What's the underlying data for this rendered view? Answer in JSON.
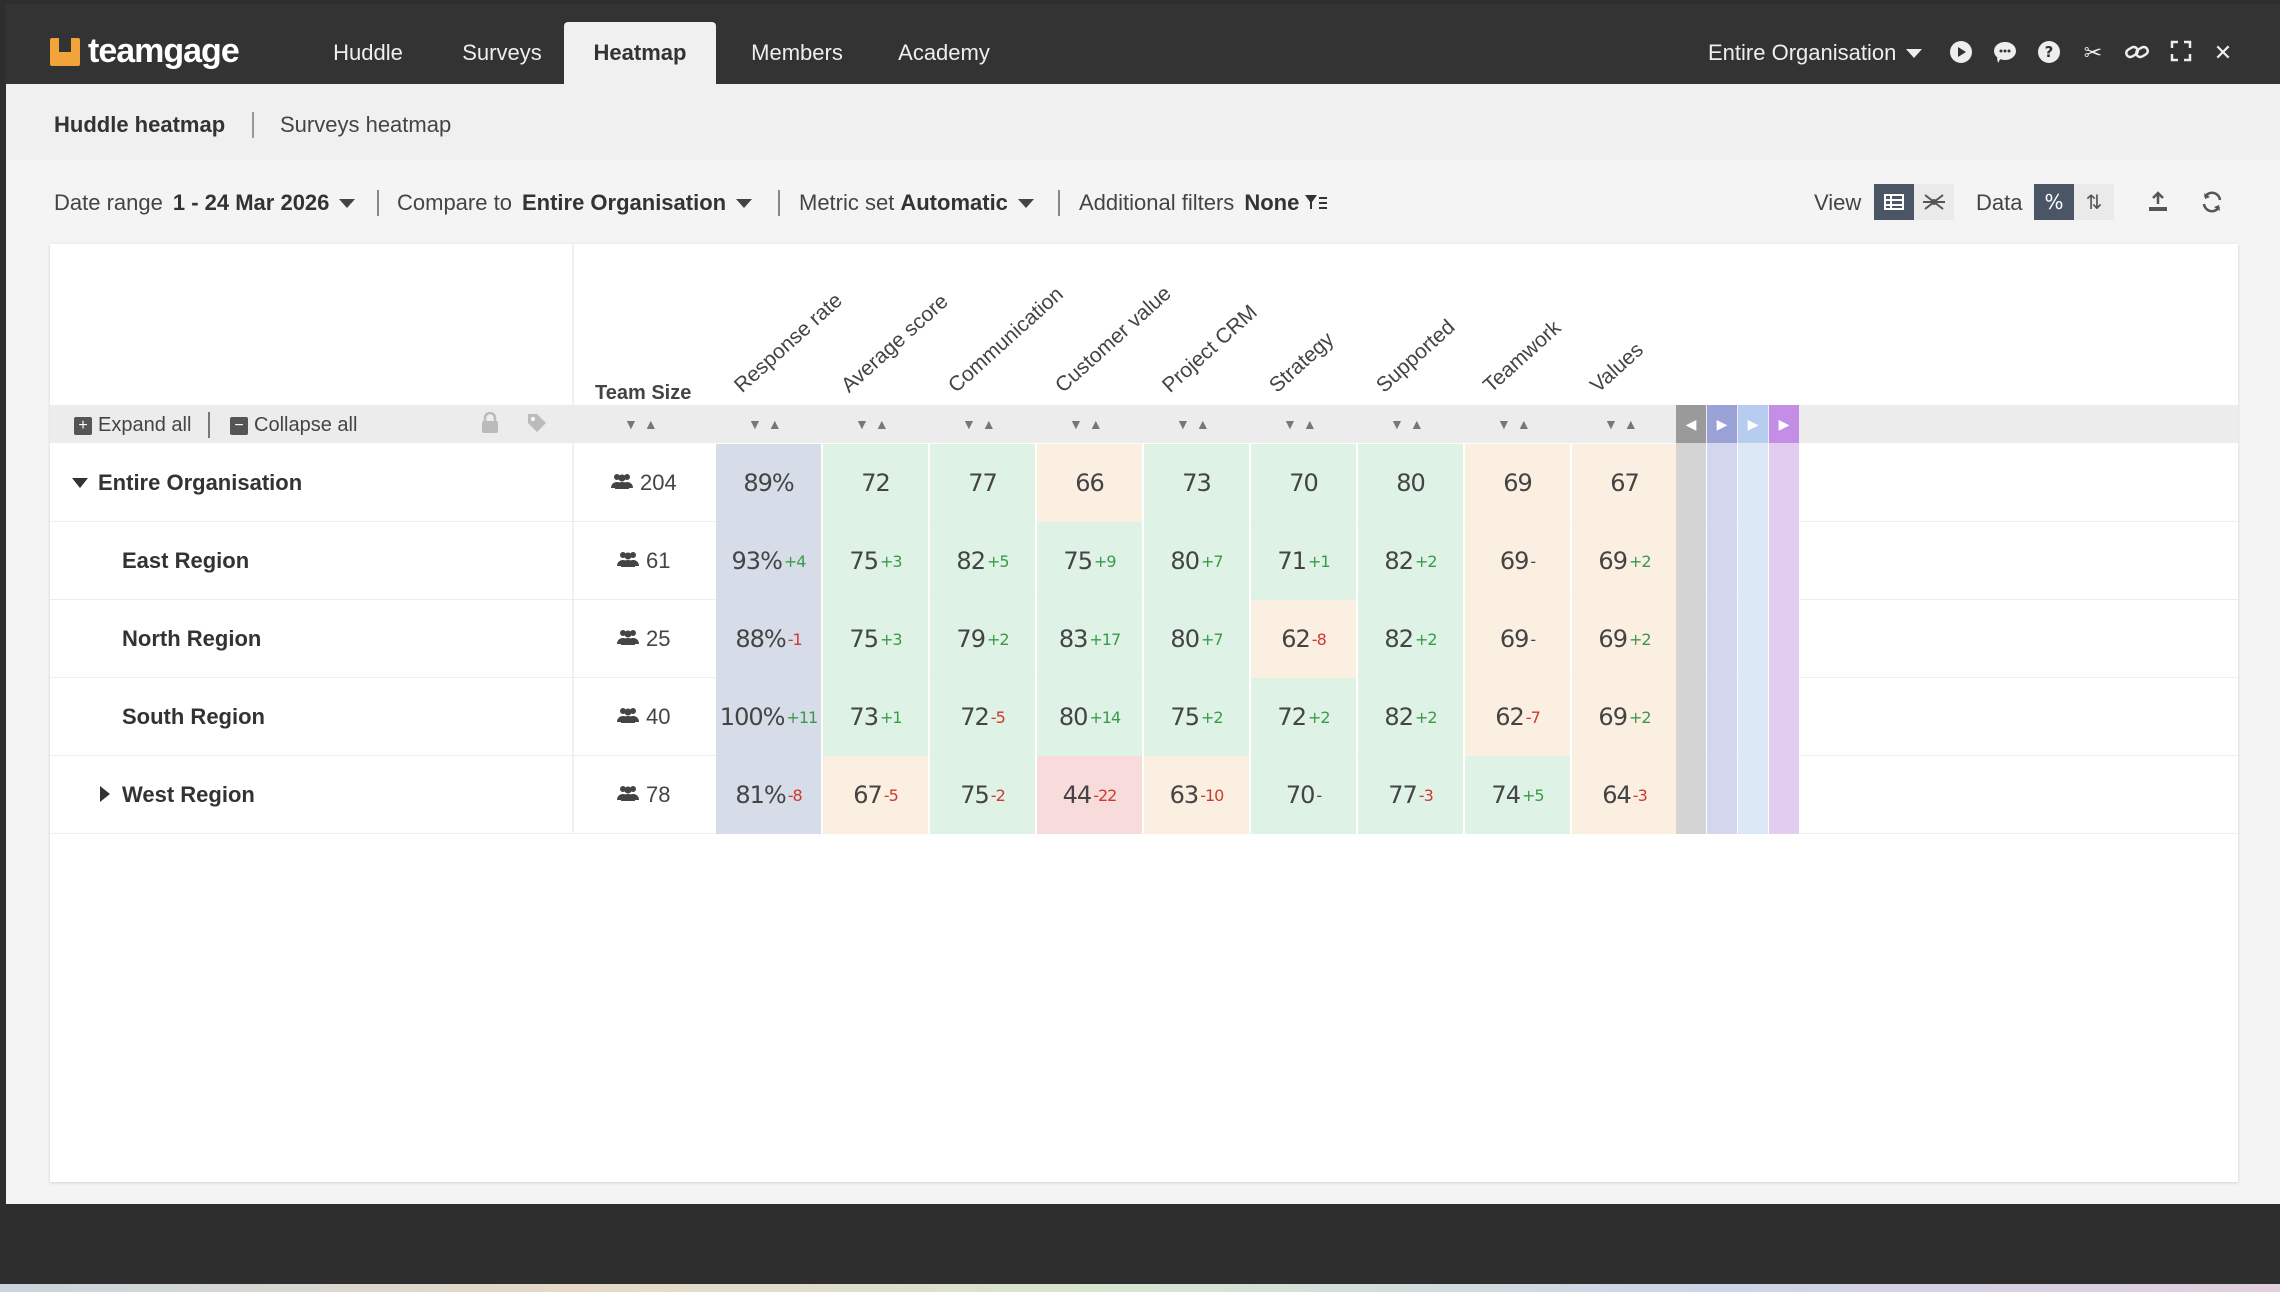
{
  "app": {
    "name": "teamgage"
  },
  "nav": {
    "tabs": [
      {
        "label": "Huddle",
        "active": false
      },
      {
        "label": "Surveys",
        "active": false
      },
      {
        "label": "Heatmap",
        "active": true
      },
      {
        "label": "Members",
        "active": false
      },
      {
        "label": "Academy",
        "active": false
      }
    ],
    "org_selector": "Entire Organisation",
    "icons": [
      "play-icon",
      "chat-icon",
      "help-icon",
      "scissors-icon",
      "link-icon",
      "fullscreen-icon",
      "close-icon"
    ]
  },
  "subnav": {
    "tabs": [
      {
        "label": "Huddle heatmap",
        "active": true
      },
      {
        "label": "Surveys heatmap",
        "active": false
      }
    ]
  },
  "filters": {
    "date_range_label": "Date range",
    "date_range_value": "1 - 24 Mar 2026",
    "compare_label": "Compare to",
    "compare_value": "Entire Organisation",
    "metric_label": "Metric set",
    "metric_value": "Automatic",
    "additional_label": "Additional filters",
    "additional_value": "None",
    "view_label": "View",
    "data_label": "Data"
  },
  "table": {
    "expand_all": "Expand all",
    "collapse_all": "Collapse all",
    "team_size_header": "Team Size",
    "metrics": [
      "Response rate",
      "Average score",
      "Communication",
      "Customer value",
      "Project CRM",
      "Strategy",
      "Supported",
      "Teamwork",
      "Values"
    ],
    "rows": [
      {
        "name": "Entire Organisation",
        "size": "204",
        "expanded": true,
        "level": 0,
        "cells": [
          {
            "v": "89%",
            "d": "",
            "bg": "#d6dde8"
          },
          {
            "v": "72",
            "d": "",
            "bg": "#dff2e6"
          },
          {
            "v": "77",
            "d": "",
            "bg": "#dff2e6"
          },
          {
            "v": "66",
            "d": "",
            "bg": "#fbefe2"
          },
          {
            "v": "73",
            "d": "",
            "bg": "#dff2e6"
          },
          {
            "v": "70",
            "d": "",
            "bg": "#dff2e6"
          },
          {
            "v": "80",
            "d": "",
            "bg": "#dff2e6"
          },
          {
            "v": "69",
            "d": "",
            "bg": "#fbefe2"
          },
          {
            "v": "67",
            "d": "",
            "bg": "#fbefe2"
          }
        ]
      },
      {
        "name": "East Region",
        "size": "61",
        "level": 1,
        "cells": [
          {
            "v": "93%",
            "d": "+4",
            "bg": "#d6dde8"
          },
          {
            "v": "75",
            "d": "+3",
            "bg": "#dff2e6"
          },
          {
            "v": "82",
            "d": "+5",
            "bg": "#dff2e6"
          },
          {
            "v": "75",
            "d": "+9",
            "bg": "#dff2e6"
          },
          {
            "v": "80",
            "d": "+7",
            "bg": "#dff2e6"
          },
          {
            "v": "71",
            "d": "+1",
            "bg": "#dff2e6"
          },
          {
            "v": "82",
            "d": "+2",
            "bg": "#dff2e6"
          },
          {
            "v": "69",
            "d": "-",
            "bg": "#fbefe2"
          },
          {
            "v": "69",
            "d": "+2",
            "bg": "#fbefe2"
          }
        ]
      },
      {
        "name": "North Region",
        "size": "25",
        "level": 1,
        "cells": [
          {
            "v": "88%",
            "d": "-1",
            "bg": "#d6dde8"
          },
          {
            "v": "75",
            "d": "+3",
            "bg": "#dff2e6"
          },
          {
            "v": "79",
            "d": "+2",
            "bg": "#dff2e6"
          },
          {
            "v": "83",
            "d": "+17",
            "bg": "#dff2e6"
          },
          {
            "v": "80",
            "d": "+7",
            "bg": "#dff2e6"
          },
          {
            "v": "62",
            "d": "-8",
            "bg": "#fbefe2"
          },
          {
            "v": "82",
            "d": "+2",
            "bg": "#dff2e6"
          },
          {
            "v": "69",
            "d": "-",
            "bg": "#fbefe2"
          },
          {
            "v": "69",
            "d": "+2",
            "bg": "#fbefe2"
          }
        ]
      },
      {
        "name": "South Region",
        "size": "40",
        "level": 1,
        "cells": [
          {
            "v": "100%",
            "d": "+11",
            "bg": "#d6dde8"
          },
          {
            "v": "73",
            "d": "+1",
            "bg": "#dff2e6"
          },
          {
            "v": "72",
            "d": "-5",
            "bg": "#dff2e6"
          },
          {
            "v": "80",
            "d": "+14",
            "bg": "#dff2e6"
          },
          {
            "v": "75",
            "d": "+2",
            "bg": "#dff2e6"
          },
          {
            "v": "72",
            "d": "+2",
            "bg": "#dff2e6"
          },
          {
            "v": "82",
            "d": "+2",
            "bg": "#dff2e6"
          },
          {
            "v": "62",
            "d": "-7",
            "bg": "#fbefe2"
          },
          {
            "v": "69",
            "d": "+2",
            "bg": "#fbefe2"
          }
        ]
      },
      {
        "name": "West Region",
        "size": "78",
        "collapsed": true,
        "level": 1,
        "cells": [
          {
            "v": "81%",
            "d": "-8",
            "bg": "#d6dde8"
          },
          {
            "v": "67",
            "d": "-5",
            "bg": "#fbefe2"
          },
          {
            "v": "75",
            "d": "-2",
            "bg": "#dff2e6"
          },
          {
            "v": "44",
            "d": "-22",
            "bg": "#f8dcdc"
          },
          {
            "v": "63",
            "d": "-10",
            "bg": "#fbefe2"
          },
          {
            "v": "70",
            "d": "-",
            "bg": "#dff2e6"
          },
          {
            "v": "77",
            "d": "-3",
            "bg": "#dff2e6"
          },
          {
            "v": "74",
            "d": "+5",
            "bg": "#dff2e6"
          },
          {
            "v": "64",
            "d": "-3",
            "bg": "#fbefe2"
          }
        ]
      }
    ]
  },
  "colors": {
    "topbar": "#333333",
    "accent": "#f2a33a",
    "positive": "#3a9a4a",
    "negative": "#d0392f",
    "scroll_strips": [
      "#d4d4d4",
      "#d3d6ec",
      "#dde8f6",
      "#e2cdef"
    ],
    "scroll_arrows": [
      "#9a9a9a",
      "#9aa1d6",
      "#b6cdf0",
      "#c58ee6"
    ]
  }
}
